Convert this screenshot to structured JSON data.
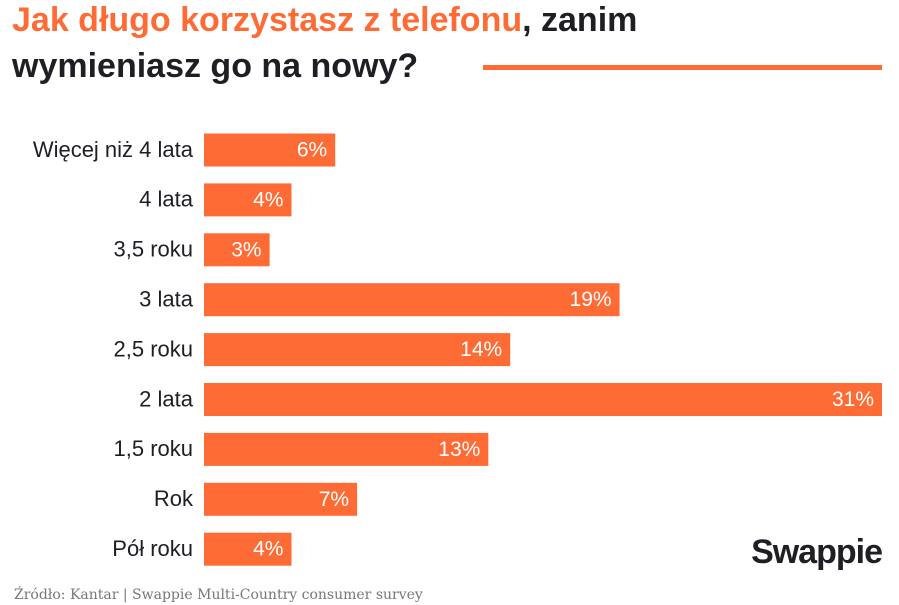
{
  "chart_data": {
    "type": "hbar",
    "title": {
      "highlight": "Jak długo korzystasz z telefonu",
      "rest_line1": ", zanim",
      "line2": "wymieniasz go na nowy?"
    },
    "categories": [
      "Więcej niż 4 lata",
      "4 lata",
      "3,5 roku",
      "3 lata",
      "2,5 roku",
      "2 lata",
      "1,5 roku",
      "Rok",
      "Pół roku"
    ],
    "values": [
      6,
      4,
      3,
      19,
      14,
      31,
      13,
      7,
      4
    ],
    "value_labels": [
      "6%",
      "4%",
      "3%",
      "19%",
      "14%",
      "31%",
      "13%",
      "7%",
      "4%"
    ],
    "color": "#fe6b35",
    "source": "Źródło: Kantar | Swappie Multi-Country consumer survey",
    "logo": "Swappie"
  }
}
